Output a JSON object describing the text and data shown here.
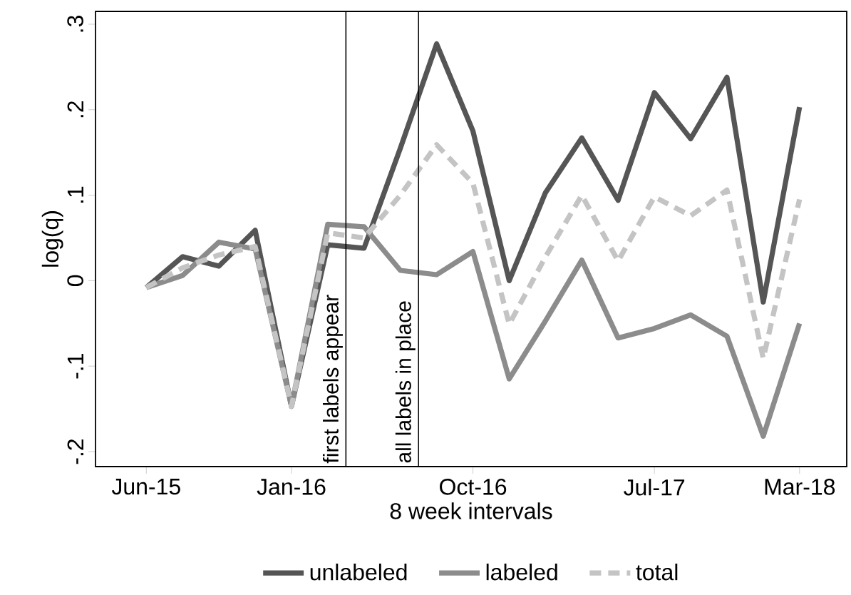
{
  "chart_data": {
    "type": "line",
    "xlabel": "8 week intervals",
    "ylabel": "log(q)",
    "categories": [
      "Jun-15",
      null,
      null,
      null,
      "Jan-16",
      null,
      null,
      null,
      null,
      "Oct-16",
      null,
      null,
      null,
      null,
      "Jul-17",
      null,
      null,
      null,
      "Mar-18"
    ],
    "ylim": [
      -0.2175,
      0.315
    ],
    "yticks": [
      {
        "value": -0.2,
        "label": "-.2"
      },
      {
        "value": -0.1,
        "label": "-.1"
      },
      0,
      {
        "value": 0.1,
        "label": ".1"
      },
      {
        "value": 0.2,
        "label": ".2"
      },
      {
        "value": 0.3,
        "label": ".3"
      }
    ],
    "series": [
      {
        "name": "unlabeled",
        "color": "#555555",
        "values": [
          -0.008,
          0.028,
          0.017,
          0.059,
          -0.147,
          0.042,
          0.038,
          0.155,
          0.277,
          0.175,
          0.0,
          0.103,
          0.167,
          0.094,
          0.22,
          0.166,
          0.238,
          -0.025,
          0.203
        ]
      },
      {
        "name": "labeled",
        "color": "#8c8c8c",
        "values": [
          -0.008,
          0.006,
          0.045,
          0.037,
          -0.147,
          0.066,
          0.063,
          0.012,
          0.007,
          0.034,
          -0.115,
          -0.047,
          0.024,
          -0.067,
          -0.056,
          -0.04,
          -0.065,
          -0.182,
          -0.05
        ]
      },
      {
        "name": "total",
        "color": "#c4c4c4",
        "line_style": "dashed",
        "values": [
          -0.008,
          0.015,
          0.03,
          0.04,
          -0.147,
          0.056,
          0.05,
          0.1,
          0.159,
          0.114,
          -0.051,
          0.028,
          0.1,
          0.023,
          0.098,
          0.076,
          0.106,
          -0.091,
          0.095
        ]
      }
    ],
    "annotations": [
      "first labels appear",
      "all labels in place"
    ],
    "legend": "bottom"
  }
}
